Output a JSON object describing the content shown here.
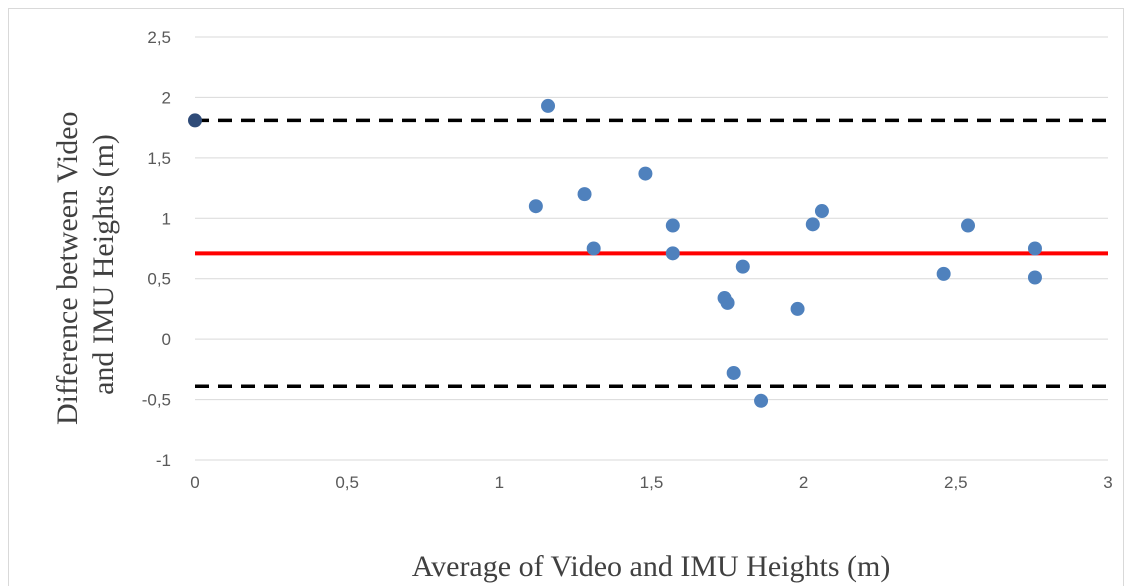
{
  "chart_data": {
    "type": "scatter",
    "title": "",
    "xlabel": "Average of Video and IMU Heights (m)",
    "ylabel_lines": [
      "Difference between Video",
      "and IMU Heights (m)"
    ],
    "xlim": [
      0,
      3
    ],
    "ylim": [
      -1,
      2.5
    ],
    "x_ticks": [
      0,
      0.5,
      1,
      1.5,
      2,
      2.5,
      3
    ],
    "x_tick_labels": [
      "0",
      "0,5",
      "1",
      "1,5",
      "2",
      "2,5",
      "3"
    ],
    "y_ticks": [
      -1,
      -0.5,
      0,
      0.5,
      1,
      1.5,
      2,
      2.5
    ],
    "y_tick_labels": [
      "-1",
      "-0,5",
      "0",
      "0,5",
      "1",
      "1,5",
      "2",
      "2,5"
    ],
    "grid": true,
    "legend": "none",
    "points": [
      {
        "x": 0.0,
        "y": 1.81,
        "color": "#2f4b78"
      },
      {
        "x": 1.16,
        "y": 1.93
      },
      {
        "x": 1.12,
        "y": 1.1
      },
      {
        "x": 1.28,
        "y": 1.2
      },
      {
        "x": 1.31,
        "y": 0.75
      },
      {
        "x": 1.48,
        "y": 1.37
      },
      {
        "x": 1.57,
        "y": 0.94
      },
      {
        "x": 1.57,
        "y": 0.71
      },
      {
        "x": 1.74,
        "y": 0.34
      },
      {
        "x": 1.75,
        "y": 0.3
      },
      {
        "x": 1.77,
        "y": -0.28
      },
      {
        "x": 1.8,
        "y": 0.6
      },
      {
        "x": 1.86,
        "y": -0.51
      },
      {
        "x": 1.98,
        "y": 0.25
      },
      {
        "x": 2.03,
        "y": 0.95
      },
      {
        "x": 2.06,
        "y": 1.06
      },
      {
        "x": 2.46,
        "y": 0.54
      },
      {
        "x": 2.54,
        "y": 0.94
      },
      {
        "x": 2.76,
        "y": 0.75
      },
      {
        "x": 2.76,
        "y": 0.51
      }
    ],
    "reference_lines": [
      {
        "y": 1.81,
        "color": "#000000",
        "style": "dashed"
      },
      {
        "y": 0.71,
        "color": "#ff0000",
        "style": "solid"
      },
      {
        "y": -0.39,
        "color": "#000000",
        "style": "dashed"
      }
    ],
    "point_color": "#4f81bd"
  }
}
